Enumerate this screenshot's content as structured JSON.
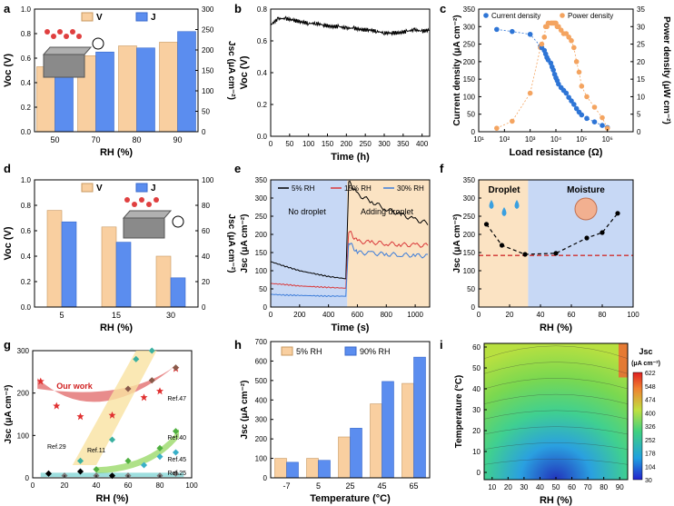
{
  "colors": {
    "voc": "#F9CFA0",
    "jsc": "#5B8DEF",
    "current": "#2E75D6",
    "power": "#F4A460",
    "black": "#000000",
    "red": "#D9383A",
    "blue": "#3D7DD9",
    "zone_orange": "#FBE3C3",
    "zone_blue": "#C7D8F5",
    "ref_red": "#E06666",
    "ref_yellow": "#F9E2A1",
    "ref_green": "#9BD96A",
    "ref_teal": "#5BC8C8",
    "ref_brown": "#A07060"
  },
  "chart_data": [
    {
      "panel": "a",
      "type": "bar",
      "categories": [
        "50",
        "70",
        "80",
        "90"
      ],
      "series": [
        {
          "name": "Voc",
          "values": [
            0.53,
            0.62,
            0.7,
            0.73
          ]
        },
        {
          "name": "Jsc",
          "values": [
            160,
            195,
            205,
            245
          ]
        }
      ],
      "xlabel": "RH (%)",
      "ylabel": "Voc (V)",
      "ylabel_right": "Jsc (μA cm⁻²)",
      "ylim": [
        0,
        1.0
      ],
      "ylim_right": [
        0,
        300
      ],
      "yticks": [
        "0.0",
        "0.2",
        "0.4",
        "0.6",
        "0.8",
        "1.0"
      ],
      "yticks_right": [
        "0",
        "50",
        "100",
        "150",
        "200",
        "250",
        "300"
      ],
      "legend": [
        "V",
        "J"
      ]
    },
    {
      "panel": "b",
      "type": "line",
      "x": [
        0,
        20,
        40,
        60,
        80,
        100,
        120,
        140,
        160,
        180,
        200,
        220,
        240,
        260,
        280,
        300,
        320,
        340,
        360,
        380,
        400,
        420
      ],
      "series": [
        {
          "name": "Voc",
          "values": [
            0.7,
            0.74,
            0.74,
            0.73,
            0.72,
            0.71,
            0.71,
            0.7,
            0.69,
            0.69,
            0.68,
            0.68,
            0.67,
            0.67,
            0.66,
            0.65,
            0.65,
            0.65,
            0.66,
            0.67,
            0.66,
            0.67
          ]
        }
      ],
      "xlabel": "Time (h)",
      "ylabel": "Voc (V)",
      "xlim": [
        0,
        420
      ],
      "ylim": [
        0,
        0.8
      ],
      "xticks": [
        "0",
        "50",
        "100",
        "150",
        "200",
        "250",
        "300",
        "350",
        "400"
      ],
      "yticks": [
        "0.0",
        "0.2",
        "0.4",
        "0.6",
        "0.8"
      ]
    },
    {
      "panel": "c",
      "type": "scatter",
      "x_log_exp": [
        1.7,
        2.3,
        3.0,
        3.4,
        3.45,
        3.55,
        3.6,
        3.65,
        3.7,
        3.8,
        3.85,
        3.9,
        3.95,
        4.0,
        4.05,
        4.1,
        4.2,
        4.3,
        4.4,
        4.5,
        4.6,
        4.7,
        4.8,
        4.9,
        5.0,
        5.2,
        5.5,
        5.8,
        6.0
      ],
      "series": [
        {
          "name": "Current density",
          "values": [
            292,
            286,
            278,
            244,
            240,
            232,
            222,
            212,
            205,
            196,
            185,
            176,
            164,
            154,
            146,
            136,
            126,
            118,
            110,
            98,
            88,
            78,
            66,
            56,
            48,
            38,
            28,
            18,
            12
          ]
        },
        {
          "name": "Power density",
          "values": [
            1,
            3,
            11,
            24,
            25,
            27,
            30,
            30,
            31,
            31,
            31,
            31,
            31,
            31,
            30,
            30,
            29,
            28,
            28,
            27,
            26,
            24,
            20,
            17,
            13,
            10,
            7,
            4,
            1
          ]
        }
      ],
      "xlabel": "Load resistance (Ω)",
      "ylabel": "Current density (μA cm⁻²)",
      "ylabel_right": "Power density (μW cm⁻²)",
      "xlim_exp": [
        1,
        7
      ],
      "ylim": [
        0,
        350
      ],
      "ylim_right": [
        0,
        35
      ],
      "xticks": [
        "10¹",
        "10²",
        "10³",
        "10⁴",
        "10⁵",
        "10⁶"
      ],
      "yticks": [
        "0",
        "50",
        "100",
        "150",
        "200",
        "250",
        "300",
        "350"
      ],
      "yticks_right": [
        "0",
        "5",
        "10",
        "15",
        "20",
        "25",
        "30",
        "35"
      ],
      "legend": [
        "Current density",
        "Power density"
      ]
    },
    {
      "panel": "d",
      "type": "bar",
      "categories": [
        "5",
        "15",
        "30"
      ],
      "series": [
        {
          "name": "Voc",
          "values": [
            0.76,
            0.63,
            0.4
          ]
        },
        {
          "name": "Jsc",
          "values": [
            67,
            51,
            23
          ]
        }
      ],
      "xlabel": "RH (%)",
      "ylabel": "Voc (V)",
      "ylabel_right": "Jsc (μA cm⁻²)",
      "ylim": [
        0,
        1.0
      ],
      "ylim_right": [
        0,
        100
      ],
      "yticks": [
        "0.0",
        "0.2",
        "0.4",
        "0.6",
        "0.8",
        "1.0"
      ],
      "yticks_right": [
        "0",
        "20",
        "40",
        "60",
        "80",
        "100"
      ],
      "legend": [
        "V",
        "J"
      ]
    },
    {
      "panel": "e",
      "type": "line",
      "x": [
        0,
        100,
        200,
        300,
        400,
        520,
        540,
        600,
        700,
        800,
        900,
        1000,
        1100
      ],
      "series": [
        {
          "name": "5% RH",
          "values": [
            125,
            112,
            100,
            92,
            84,
            78,
            345,
            310,
            290,
            270,
            255,
            240,
            230
          ]
        },
        {
          "name": "15% RH",
          "values": [
            65,
            62,
            58,
            56,
            54,
            52,
            210,
            180,
            178,
            175,
            172,
            170,
            170
          ]
        },
        {
          "name": "30% RH",
          "values": [
            35,
            33,
            32,
            31,
            30,
            30,
            180,
            150,
            148,
            145,
            144,
            142,
            140
          ]
        }
      ],
      "annotations": [
        "No droplet",
        "Adding droplet"
      ],
      "xlabel": "Time (s)",
      "ylabel": "Jsc (μA cm⁻²)",
      "xlim": [
        0,
        1100
      ],
      "ylim": [
        0,
        350
      ],
      "xticks": [
        "0",
        "200",
        "400",
        "600",
        "800",
        "1000"
      ],
      "yticks": [
        "0",
        "50",
        "100",
        "150",
        "200",
        "250",
        "300",
        "350"
      ],
      "legend": [
        "5% RH",
        "15% RH",
        "30% RH"
      ]
    },
    {
      "panel": "f",
      "type": "scatter",
      "x": [
        5,
        15,
        30,
        50,
        70,
        80,
        90
      ],
      "values": [
        228,
        170,
        145,
        148,
        190,
        205,
        258
      ],
      "baseline": 142,
      "zones": [
        "Droplet",
        "Moisture"
      ],
      "xlabel": "RH (%)",
      "ylabel": "Jsc (μA cm⁻²)",
      "xlim": [
        0,
        100
      ],
      "ylim": [
        0,
        350
      ],
      "xticks": [
        "0",
        "20",
        "40",
        "60",
        "80",
        "100"
      ],
      "yticks": [
        "0",
        "50",
        "100",
        "150",
        "200",
        "250",
        "300",
        "350"
      ]
    },
    {
      "panel": "g",
      "type": "scatter",
      "series": [
        {
          "name": "Our work",
          "x": [
            5,
            15,
            30,
            50,
            70,
            80,
            90
          ],
          "values": [
            228,
            170,
            145,
            148,
            190,
            205,
            258
          ]
        },
        {
          "name": "Ref.47",
          "x": [
            60,
            75,
            90
          ],
          "values": [
            210,
            230,
            260
          ]
        },
        {
          "name": "Ref.29",
          "x": [
            30,
            50,
            65,
            75
          ],
          "values": [
            40,
            90,
            280,
            300
          ]
        },
        {
          "name": "Ref.40",
          "x": [
            40,
            60,
            80,
            90
          ],
          "values": [
            20,
            40,
            70,
            110
          ]
        },
        {
          "name": "Ref.11",
          "x": [
            10,
            30,
            50
          ],
          "values": [
            10,
            15,
            5
          ]
        },
        {
          "name": "Ref.45",
          "x": [
            70,
            80,
            90
          ],
          "values": [
            30,
            50,
            60
          ]
        },
        {
          "name": "Ref.25",
          "x": [
            20,
            40,
            60,
            80,
            90
          ],
          "values": [
            5,
            5,
            5,
            5,
            10
          ]
        }
      ],
      "labels": [
        "Our work",
        "Ref.47",
        "Ref.29",
        "Ref.40",
        "Ref.11",
        "Ref.45",
        "Ref.25"
      ],
      "xlabel": "RH (%)",
      "ylabel": "Jsc (μA cm⁻²)",
      "xlim": [
        0,
        100
      ],
      "ylim": [
        0,
        300
      ],
      "xticks": [
        "0",
        "20",
        "40",
        "60",
        "80",
        "100"
      ],
      "yticks": [
        "0",
        "100",
        "200",
        "300"
      ]
    },
    {
      "panel": "h",
      "type": "bar",
      "categories": [
        "-7",
        "5",
        "25",
        "45",
        "65"
      ],
      "series": [
        {
          "name": "5% RH",
          "values": [
            100,
            100,
            210,
            380,
            485
          ]
        },
        {
          "name": "90% RH",
          "values": [
            80,
            90,
            255,
            495,
            620
          ]
        }
      ],
      "xlabel": "Temperature (°C)",
      "ylabel": "Jsc (μA cm⁻²)",
      "ylim": [
        0,
        700
      ],
      "yticks": [
        "0",
        "100",
        "200",
        "300",
        "400",
        "500",
        "600",
        "700"
      ],
      "legend": [
        "5% RH",
        "90% RH"
      ]
    },
    {
      "panel": "i",
      "type": "heatmap",
      "xlabel": "RH (%)",
      "ylabel": "Temperature (°C)",
      "xticks": [
        "10",
        "20",
        "30",
        "40",
        "50",
        "60",
        "70",
        "80",
        "90"
      ],
      "yticks": [
        "0",
        "10",
        "20",
        "30",
        "40",
        "50",
        "60"
      ],
      "colorbar_title": "Jsc",
      "colorbar_unit": "(μA cm⁻²)",
      "colorbar_ticks": [
        "622",
        "548",
        "474",
        "400",
        "326",
        "252",
        "178",
        "104",
        "30"
      ]
    }
  ],
  "panel_labels": [
    "a",
    "b",
    "c",
    "d",
    "e",
    "f",
    "g",
    "h",
    "i"
  ]
}
